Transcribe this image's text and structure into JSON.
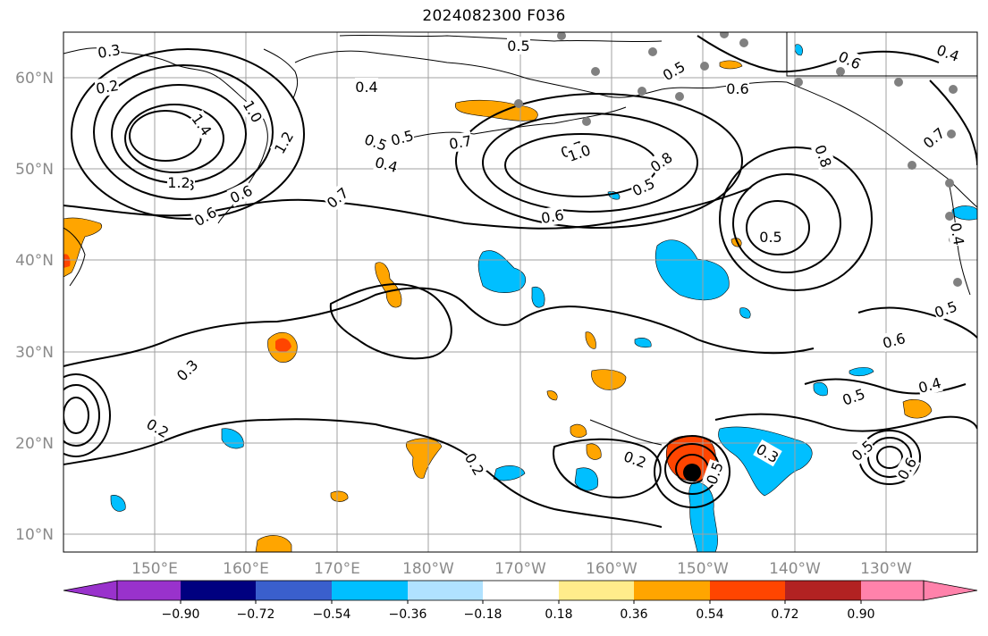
{
  "title": "2024082300 F036",
  "map": {
    "lat_labels": [
      "10°N",
      "20°N",
      "30°N",
      "40°N",
      "50°N",
      "60°N"
    ],
    "lon_labels": [
      "150°E",
      "160°E",
      "170°E",
      "180°W",
      "170°W",
      "160°W",
      "150°W",
      "140°W",
      "130°W"
    ],
    "grid": true,
    "land_color": "#ffffff",
    "coastline_color": "#000000",
    "station_marker_color": "#808080"
  },
  "contour_labels": [
    "0.3",
    "0.2",
    "0.8",
    "1.4",
    "1.2",
    "1.0",
    "1.2",
    "0.6",
    "0.4",
    "0.5",
    "0.7",
    "0.5",
    "0.4",
    "0.7",
    "0.6",
    "0.7",
    "1.0",
    "0.8",
    "0.5",
    "0.6",
    "0.8",
    "0.5",
    "0.6",
    "0.5",
    "0.7",
    "0.4",
    "0.6",
    "0.5",
    "0.6",
    "0.5",
    "0.3",
    "0.2",
    "0.2",
    "0.5",
    "0.2",
    "0.4",
    "0.3",
    "0.5",
    "0.6",
    "0.5",
    "0.4"
  ],
  "colorbar": {
    "ticks": [
      "−0.90",
      "−0.72",
      "−0.54",
      "−0.36",
      "−0.18",
      "0.18",
      "0.36",
      "0.54",
      "0.72",
      "0.90"
    ],
    "colors": [
      "#9932cc",
      "#000080",
      "#3a5fcd",
      "#00bfff",
      "#b0e2ff",
      "#ffffff",
      "#ffec8b",
      "#ffa500",
      "#ff4500",
      "#b22222",
      "#ff82ab",
      "#ff82ab"
    ],
    "extend": "both"
  }
}
